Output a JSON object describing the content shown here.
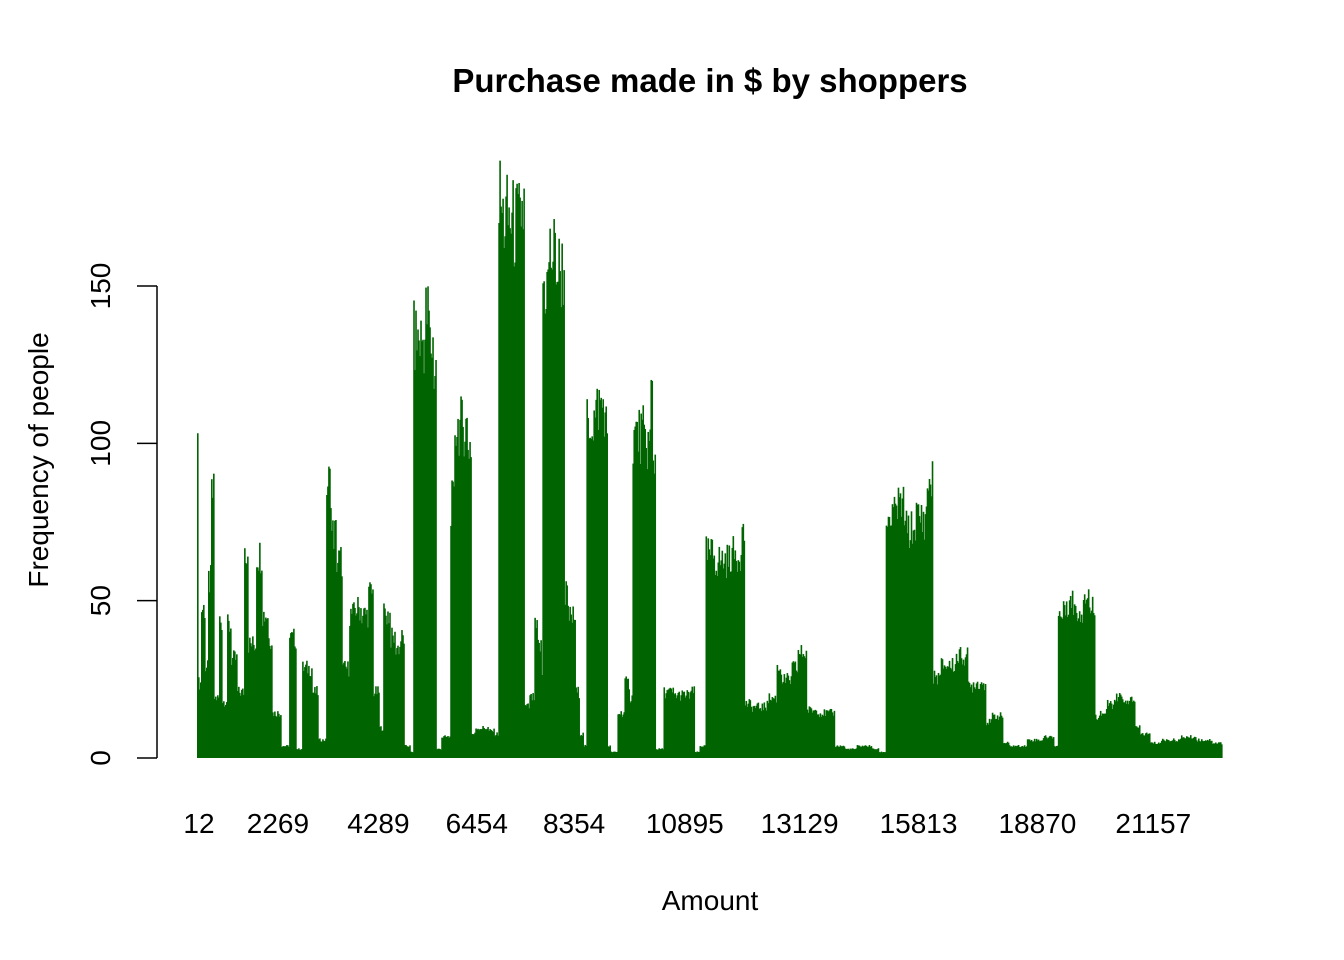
{
  "chart_data": {
    "type": "bar",
    "title": "Purchase made in $ by shoppers",
    "xlabel": "Amount",
    "ylabel": "Frequency of people",
    "bar_color": "#006400",
    "background": "#ffffff",
    "ylim": [
      0,
      190
    ],
    "y_ticks": [
      0,
      50,
      100,
      150
    ],
    "x_tick_labels": [
      "12",
      "2269",
      "4289",
      "6454",
      "8354",
      "10895",
      "13129",
      "15813",
      "18870",
      "21157"
    ],
    "x_tick_label_positions": [
      0.0,
      0.077,
      0.175,
      0.271,
      0.366,
      0.474,
      0.586,
      0.702,
      0.818,
      0.931
    ],
    "n_bars": 1024,
    "bar_profile": [
      [
        0.0,
        0.001,
        120
      ],
      [
        0.001,
        0.004,
        25
      ],
      [
        0.004,
        0.008,
        50
      ],
      [
        0.008,
        0.011,
        30
      ],
      [
        0.011,
        0.014,
        59
      ],
      [
        0.014,
        0.017,
        88
      ],
      [
        0.017,
        0.021,
        20
      ],
      [
        0.021,
        0.024,
        46
      ],
      [
        0.024,
        0.029,
        19
      ],
      [
        0.029,
        0.033,
        44
      ],
      [
        0.033,
        0.039,
        33
      ],
      [
        0.039,
        0.046,
        22
      ],
      [
        0.046,
        0.05,
        70
      ],
      [
        0.05,
        0.058,
        38
      ],
      [
        0.058,
        0.063,
        68
      ],
      [
        0.063,
        0.069,
        48
      ],
      [
        0.069,
        0.073,
        40
      ],
      [
        0.073,
        0.082,
        15
      ],
      [
        0.082,
        0.09,
        4
      ],
      [
        0.09,
        0.097,
        40
      ],
      [
        0.097,
        0.103,
        3
      ],
      [
        0.103,
        0.112,
        30
      ],
      [
        0.112,
        0.118,
        22
      ],
      [
        0.118,
        0.126,
        6
      ],
      [
        0.126,
        0.131,
        92
      ],
      [
        0.131,
        0.136,
        75
      ],
      [
        0.136,
        0.142,
        66
      ],
      [
        0.142,
        0.148,
        30
      ],
      [
        0.148,
        0.153,
        48
      ],
      [
        0.153,
        0.16,
        50
      ],
      [
        0.16,
        0.167,
        48
      ],
      [
        0.167,
        0.172,
        55
      ],
      [
        0.172,
        0.178,
        22
      ],
      [
        0.178,
        0.182,
        10
      ],
      [
        0.182,
        0.188,
        48
      ],
      [
        0.188,
        0.193,
        40
      ],
      [
        0.193,
        0.198,
        37
      ],
      [
        0.198,
        0.202,
        40
      ],
      [
        0.202,
        0.208,
        4
      ],
      [
        0.208,
        0.211,
        2
      ],
      [
        0.211,
        0.223,
        140
      ],
      [
        0.223,
        0.227,
        148
      ],
      [
        0.227,
        0.23,
        138
      ],
      [
        0.23,
        0.233,
        130
      ],
      [
        0.233,
        0.238,
        3
      ],
      [
        0.238,
        0.247,
        7
      ],
      [
        0.247,
        0.251,
        85
      ],
      [
        0.251,
        0.264,
        111
      ],
      [
        0.264,
        0.268,
        105
      ],
      [
        0.268,
        0.271,
        8
      ],
      [
        0.271,
        0.284,
        10
      ],
      [
        0.284,
        0.29,
        9
      ],
      [
        0.29,
        0.294,
        8
      ],
      [
        0.294,
        0.297,
        186
      ],
      [
        0.297,
        0.307,
        180
      ],
      [
        0.307,
        0.315,
        178
      ],
      [
        0.315,
        0.319,
        183
      ],
      [
        0.319,
        0.324,
        17
      ],
      [
        0.324,
        0.329,
        20
      ],
      [
        0.329,
        0.332,
        43
      ],
      [
        0.332,
        0.336,
        37
      ],
      [
        0.336,
        0.337,
        28
      ],
      [
        0.337,
        0.343,
        158
      ],
      [
        0.343,
        0.351,
        168
      ],
      [
        0.351,
        0.358,
        163
      ],
      [
        0.358,
        0.361,
        55
      ],
      [
        0.361,
        0.369,
        47
      ],
      [
        0.369,
        0.373,
        22
      ],
      [
        0.373,
        0.377,
        8
      ],
      [
        0.377,
        0.38,
        4
      ],
      [
        0.38,
        0.39,
        113
      ],
      [
        0.39,
        0.397,
        118
      ],
      [
        0.397,
        0.4,
        110
      ],
      [
        0.4,
        0.403,
        4
      ],
      [
        0.403,
        0.41,
        2
      ],
      [
        0.41,
        0.417,
        15
      ],
      [
        0.417,
        0.422,
        25
      ],
      [
        0.422,
        0.425,
        20
      ],
      [
        0.425,
        0.436,
        108
      ],
      [
        0.436,
        0.442,
        105
      ],
      [
        0.442,
        0.444,
        122
      ],
      [
        0.444,
        0.447,
        100
      ],
      [
        0.447,
        0.455,
        3
      ],
      [
        0.455,
        0.465,
        22
      ],
      [
        0.465,
        0.48,
        21
      ],
      [
        0.48,
        0.485,
        22
      ],
      [
        0.485,
        0.49,
        2
      ],
      [
        0.49,
        0.496,
        4
      ],
      [
        0.496,
        0.505,
        68
      ],
      [
        0.505,
        0.52,
        66
      ],
      [
        0.52,
        0.53,
        68
      ],
      [
        0.53,
        0.534,
        75
      ],
      [
        0.534,
        0.54,
        18
      ],
      [
        0.54,
        0.556,
        17
      ],
      [
        0.556,
        0.565,
        20
      ],
      [
        0.565,
        0.57,
        30
      ],
      [
        0.57,
        0.58,
        26
      ],
      [
        0.58,
        0.586,
        30
      ],
      [
        0.586,
        0.595,
        35
      ],
      [
        0.595,
        0.606,
        16
      ],
      [
        0.606,
        0.622,
        15
      ],
      [
        0.622,
        0.632,
        4
      ],
      [
        0.632,
        0.644,
        3
      ],
      [
        0.644,
        0.658,
        4
      ],
      [
        0.658,
        0.665,
        3
      ],
      [
        0.665,
        0.672,
        2
      ],
      [
        0.672,
        0.681,
        80
      ],
      [
        0.681,
        0.69,
        84
      ],
      [
        0.69,
        0.7,
        76
      ],
      [
        0.7,
        0.712,
        80
      ],
      [
        0.712,
        0.718,
        92
      ],
      [
        0.718,
        0.726,
        27
      ],
      [
        0.726,
        0.74,
        31
      ],
      [
        0.74,
        0.752,
        34
      ],
      [
        0.752,
        0.757,
        24
      ],
      [
        0.757,
        0.77,
        25
      ],
      [
        0.77,
        0.775,
        12
      ],
      [
        0.775,
        0.786,
        14
      ],
      [
        0.786,
        0.792,
        5
      ],
      [
        0.792,
        0.81,
        4
      ],
      [
        0.81,
        0.825,
        6
      ],
      [
        0.825,
        0.836,
        7
      ],
      [
        0.836,
        0.84,
        4
      ],
      [
        0.84,
        0.846,
        48
      ],
      [
        0.846,
        0.856,
        52
      ],
      [
        0.856,
        0.864,
        49
      ],
      [
        0.864,
        0.87,
        55
      ],
      [
        0.87,
        0.876,
        50
      ],
      [
        0.876,
        0.88,
        14
      ],
      [
        0.88,
        0.888,
        15
      ],
      [
        0.888,
        0.896,
        18
      ],
      [
        0.896,
        0.905,
        20
      ],
      [
        0.905,
        0.91,
        18
      ],
      [
        0.91,
        0.915,
        20
      ],
      [
        0.915,
        0.92,
        10
      ],
      [
        0.92,
        0.93,
        8
      ],
      [
        0.93,
        0.94,
        5
      ],
      [
        0.94,
        0.96,
        6
      ],
      [
        0.96,
        0.975,
        7
      ],
      [
        0.975,
        0.99,
        6
      ],
      [
        0.99,
        1.0,
        5
      ]
    ]
  }
}
